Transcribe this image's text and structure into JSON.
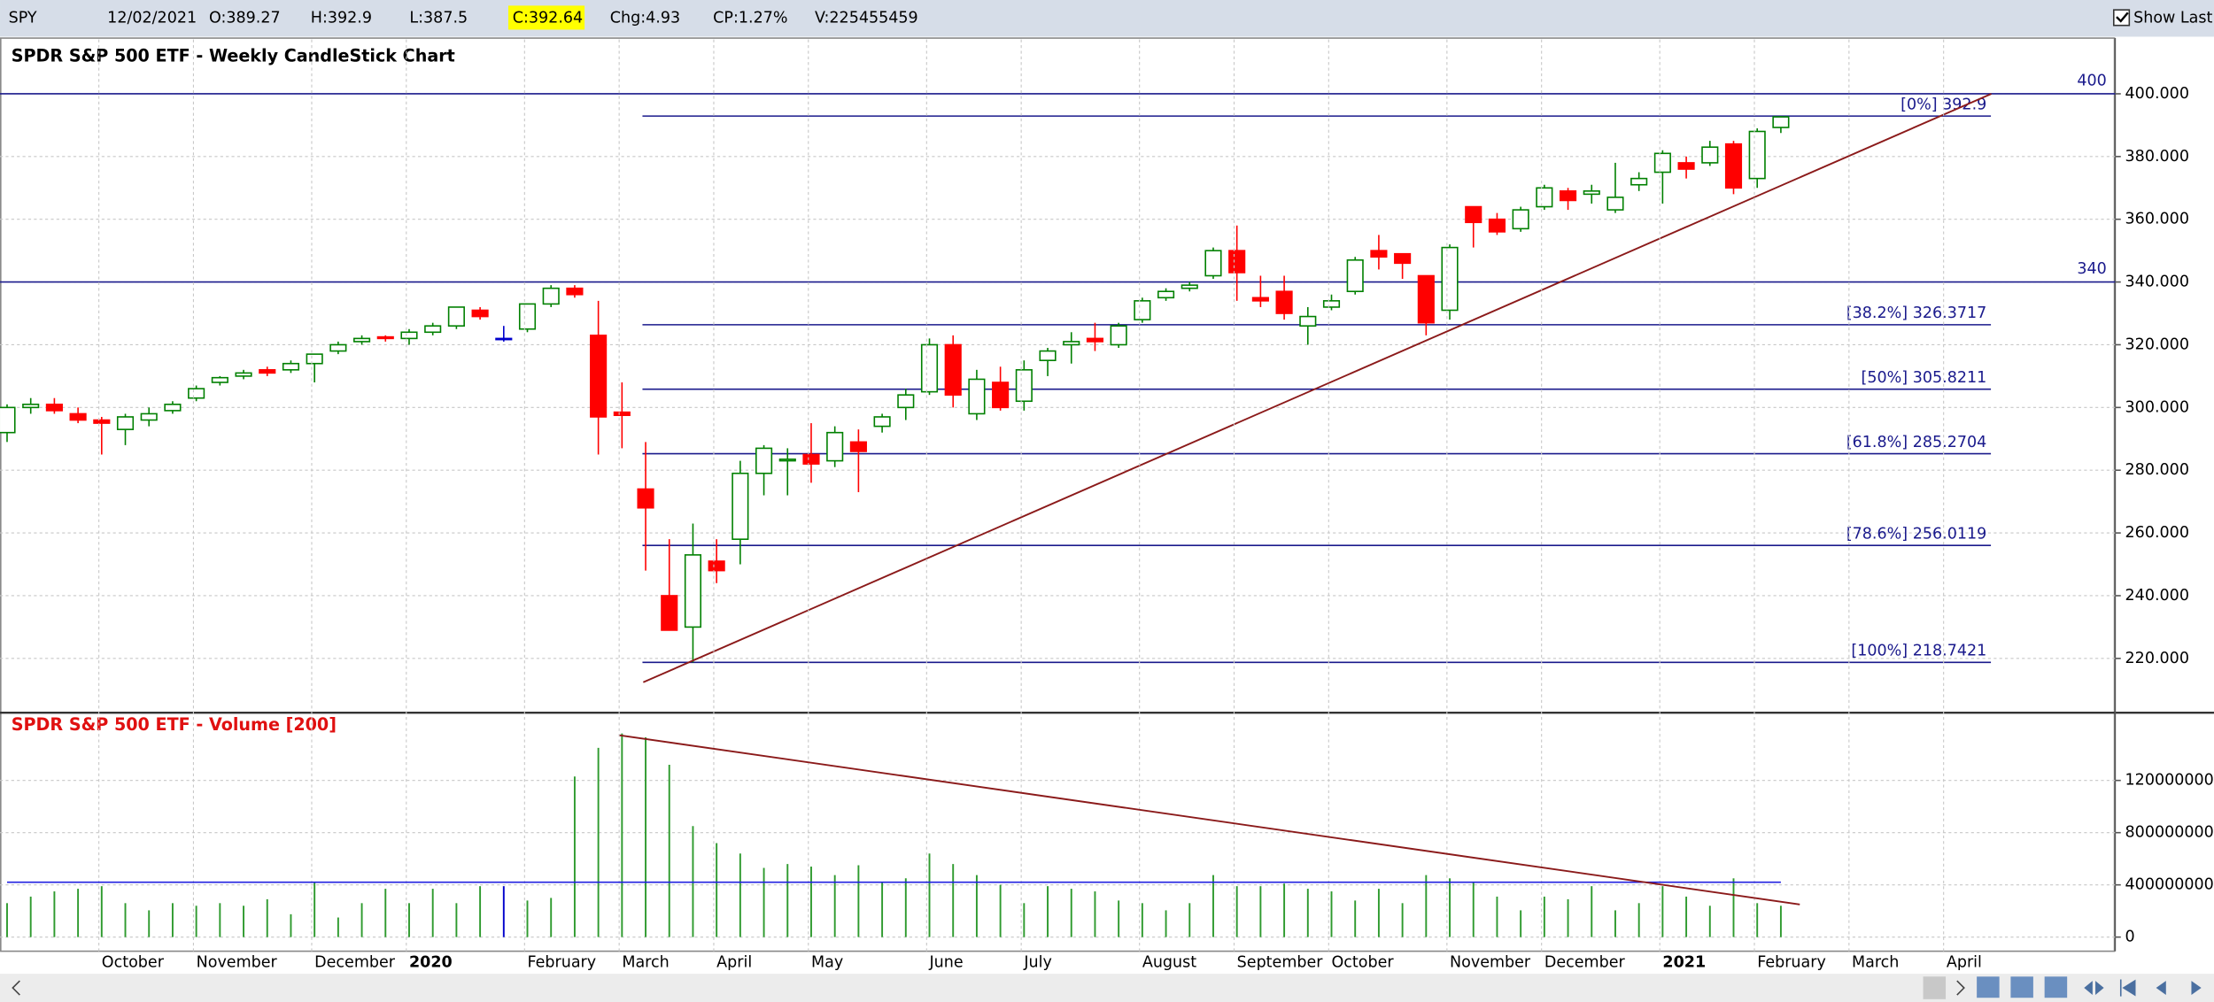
{
  "header": {
    "symbol": "SPY",
    "date": "12/02/2021",
    "open": "O:389.27",
    "high": "H:392.9",
    "low": "L:387.5",
    "close": "C:392.64",
    "change": "Chg:4.93",
    "change_pct": "CP:1.27%",
    "volume": "V:225455459",
    "show_last": "Show Last"
  },
  "chart_data": [
    {
      "type": "candlestick",
      "title": "SPDR S&P 500 ETF - Weekly CandleStick Chart",
      "open": [
        292,
        300,
        301,
        298,
        296,
        293,
        296,
        299,
        303,
        308,
        310,
        312,
        312,
        314,
        318,
        321,
        322.5,
        322,
        324,
        326,
        331,
        322,
        325,
        333,
        338,
        323,
        298.5,
        274,
        240,
        230,
        251,
        258,
        279,
        283,
        285,
        283,
        289,
        294,
        300,
        305,
        320,
        298,
        308,
        302,
        315,
        320,
        322,
        320,
        328,
        335,
        338,
        342,
        350,
        335,
        337,
        326,
        332,
        337,
        350,
        349,
        342,
        331,
        364,
        360,
        357,
        364,
        369,
        368,
        363,
        371,
        375,
        378,
        378,
        384,
        373,
        389.27,
        null,
        null,
        null,
        null,
        null,
        null,
        null,
        null
      ],
      "high": [
        301,
        303,
        303,
        300,
        297,
        298,
        300,
        302,
        307,
        310,
        312,
        313,
        315,
        317,
        321,
        323,
        323,
        325,
        327,
        332,
        332,
        326,
        333,
        339,
        339,
        334,
        308,
        289,
        258,
        263,
        258,
        283,
        288,
        287,
        295,
        294,
        293,
        298,
        306,
        322,
        323,
        312,
        313,
        315,
        319,
        324,
        327,
        327,
        335,
        338,
        340,
        351,
        358,
        342,
        342,
        332,
        336,
        348,
        355,
        349,
        342,
        352,
        364,
        362,
        364,
        371,
        370,
        371,
        378,
        375,
        382,
        380,
        385,
        385,
        389,
        392.9,
        null,
        null,
        null,
        null,
        null,
        null,
        null,
        null
      ],
      "low": [
        289,
        298,
        298,
        295,
        285,
        288,
        294,
        298,
        302,
        307,
        309,
        310,
        311,
        308,
        317,
        320,
        321,
        320,
        323,
        325,
        328,
        321,
        324,
        332,
        335,
        285,
        287,
        248,
        229,
        218.7,
        244,
        250,
        272,
        272,
        276,
        281,
        273,
        292,
        296,
        304,
        300,
        296,
        299,
        299,
        310,
        314,
        318,
        319,
        327,
        334,
        337,
        341,
        334,
        332,
        328,
        320,
        331,
        336,
        344,
        341,
        323,
        328,
        351,
        355,
        356,
        363,
        363,
        365,
        362,
        369,
        365,
        373,
        377,
        368,
        370,
        387.5,
        null,
        null,
        null,
        null,
        null,
        null,
        null,
        null
      ],
      "close": [
        300,
        301,
        299,
        296,
        295,
        297,
        298,
        301,
        306,
        309.5,
        311,
        311,
        314,
        317,
        320,
        322,
        322,
        324,
        326,
        332,
        329,
        322,
        333,
        338,
        336,
        297,
        297.5,
        268,
        229,
        253,
        248,
        279,
        287,
        283.5,
        282,
        292,
        286,
        297,
        304,
        320,
        304,
        309,
        300,
        312,
        318,
        321,
        321,
        326,
        334,
        337,
        339,
        350,
        343,
        334,
        330,
        329,
        334,
        347,
        348,
        346,
        327,
        351,
        359,
        356,
        363,
        370,
        366,
        369,
        367,
        373,
        381,
        376,
        383,
        370,
        388,
        392.64,
        null,
        null,
        null,
        null,
        null,
        null,
        null,
        null
      ],
      "up_color": "#008000",
      "down_color": "#ff0000",
      "doji_color": "#0000cc",
      "ylim": [
        203.6,
        416.0
      ],
      "yticks": [
        {
          "value": 220,
          "label": "220.000"
        },
        {
          "value": 240,
          "label": "240.000"
        },
        {
          "value": 260,
          "label": "260.000"
        },
        {
          "value": 280,
          "label": "280.000"
        },
        {
          "value": 300,
          "label": "300.000"
        },
        {
          "value": 320,
          "label": "320.000"
        },
        {
          "value": 340,
          "label": "340.000"
        },
        {
          "value": 360,
          "label": "360.000"
        },
        {
          "value": 380,
          "label": "380.000"
        },
        {
          "value": 400,
          "label": "400.000"
        }
      ],
      "grid": true,
      "hlines": [
        400,
        340
      ],
      "hline_color": "#1a1a8c",
      "fib_levels": [
        {
          "value": 392.9,
          "label": "[0%] 392.9"
        },
        {
          "value": 326.3717,
          "label": "[38.2%] 326.3717"
        },
        {
          "value": 305.8211,
          "label": "[50%] 305.8211"
        },
        {
          "value": 285.2704,
          "label": "[61.8%] 285.2704"
        },
        {
          "value": 256.0119,
          "label": "[78.6%] 256.0119"
        },
        {
          "value": 218.7421,
          "label": "[100%] 218.7421"
        }
      ],
      "trendlines": [
        {
          "start": [
            26.9,
            212.4
          ],
          "end": [
            83.9,
            400
          ],
          "color": "#8b1a1a"
        }
      ]
    },
    {
      "type": "bar",
      "title": "SPDR S&P 500 ETF - Volume [200]",
      "categories": [
        null,
        null,
        null,
        null,
        "October",
        null,
        null,
        null,
        "November",
        null,
        null,
        null,
        null,
        "December",
        null,
        null,
        null,
        "2020",
        null,
        null,
        null,
        null,
        "February",
        null,
        null,
        null,
        "March",
        null,
        null,
        null,
        "April",
        null,
        null,
        null,
        "May",
        null,
        null,
        null,
        null,
        "June",
        null,
        null,
        null,
        "July",
        null,
        null,
        null,
        null,
        "August",
        null,
        null,
        null,
        "September",
        null,
        null,
        null,
        "October",
        null,
        null,
        null,
        null,
        "November",
        null,
        null,
        null,
        "December",
        null,
        null,
        null,
        null,
        "2021",
        null,
        null,
        null,
        "February",
        null,
        null,
        null,
        "March",
        null,
        null,
        null,
        "April",
        null
      ],
      "values": [
        260000000,
        310000000,
        350000000,
        370000000,
        390000000,
        260000000,
        205000000,
        260000000,
        240000000,
        260000000,
        240000000,
        290000000,
        175000000,
        420000000,
        150000000,
        260000000,
        370000000,
        260000000,
        370000000,
        260000000,
        390000000,
        390000000,
        280000000,
        300000000,
        1230000000,
        1450000000,
        1560000000,
        1530000000,
        1320000000,
        850000000,
        720000000,
        640000000,
        530000000,
        560000000,
        540000000,
        475000000,
        550000000,
        420000000,
        450000000,
        640000000,
        560000000,
        475000000,
        400000000,
        260000000,
        390000000,
        370000000,
        350000000,
        280000000,
        260000000,
        205000000,
        260000000,
        475000000,
        390000000,
        390000000,
        410000000,
        370000000,
        350000000,
        280000000,
        370000000,
        260000000,
        475000000,
        450000000,
        420000000,
        310000000,
        205000000,
        310000000,
        290000000,
        390000000,
        205000000,
        260000000,
        390000000,
        310000000,
        240000000,
        450000000,
        260000000,
        240000000,
        null,
        null,
        null,
        null,
        null,
        null,
        null,
        null
      ],
      "color": "#2e9a2e",
      "ylim": [
        -100000000,
        1600000000
      ],
      "yticks": [
        0,
        400000000,
        800000000,
        1200000000
      ],
      "grid": true,
      "reference_lines": [
        {
          "value": 420000000,
          "color": "#2020e0"
        }
      ],
      "trendlines": [
        {
          "start": [
            25.9,
            1546000000
          ],
          "end": [
            75.8,
            250000000
          ],
          "color": "#8b1a1a"
        }
      ]
    }
  ]
}
